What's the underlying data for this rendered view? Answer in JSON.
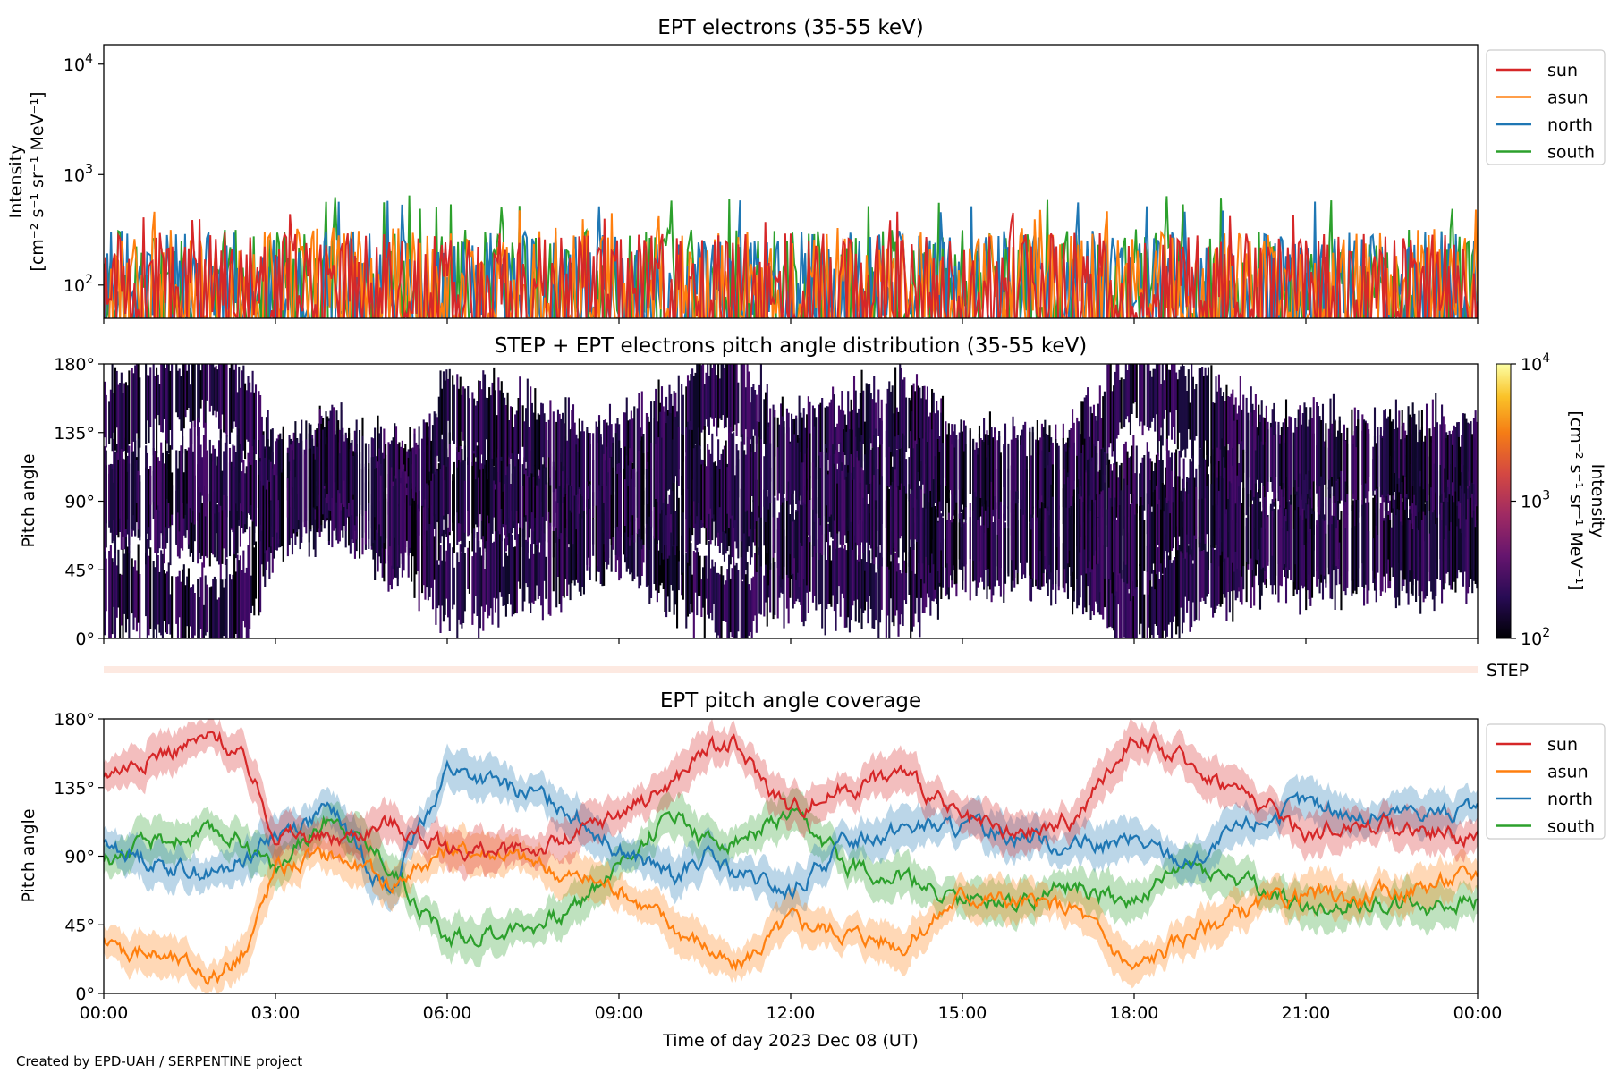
{
  "figure": {
    "credit": "Created by EPD-UAH / SERPENTINE project",
    "xlabel": "Time of day 2023 Dec 08 (UT)",
    "xticks": [
      "00:00",
      "03:00",
      "06:00",
      "09:00",
      "12:00",
      "15:00",
      "18:00",
      "21:00",
      "00:00"
    ],
    "xrange_hours": [
      0,
      24
    ]
  },
  "colors": {
    "sun": "#d62728",
    "asun": "#ff7f0e",
    "north": "#1f77b4",
    "south": "#2ca02c",
    "step_band": "#fde9e1"
  },
  "chart_data": [
    {
      "id": "intensity",
      "type": "line",
      "title": "EPT electrons (35-55 keV)",
      "ylabel_line1": "Intensity",
      "ylabel_line2": "[cm⁻² s⁻¹ sr⁻¹ MeV⁻¹]",
      "yscale": "log",
      "ylim": [
        50,
        15000
      ],
      "yticks": [
        {
          "value": 100,
          "base": "10",
          "exp": "2"
        },
        {
          "value": 1000,
          "base": "10",
          "exp": "3"
        },
        {
          "value": 10000,
          "base": "10",
          "exp": "4"
        }
      ],
      "legend": {
        "position": "outside-right",
        "entries": [
          "sun",
          "asun",
          "north",
          "south"
        ]
      },
      "series": [
        {
          "name": "sun",
          "typical_range": [
            50,
            300
          ],
          "peak": 480
        },
        {
          "name": "asun",
          "typical_range": [
            50,
            330
          ],
          "peak": 500
        },
        {
          "name": "north",
          "typical_range": [
            50,
            310
          ],
          "peak": 600
        },
        {
          "name": "south",
          "typical_range": [
            50,
            320
          ],
          "peak": 650
        }
      ]
    },
    {
      "id": "pad",
      "type": "heatmap",
      "title": "STEP + EPT electrons pitch angle distribution (35-55 keV)",
      "ylabel": "Pitch angle",
      "ylim": [
        0,
        180
      ],
      "yticks": [
        "0°",
        "45°",
        "90°",
        "135°",
        "180°"
      ],
      "colorbar": {
        "label_line1": "Intensity",
        "label_line2": "[cm⁻² s⁻¹ sr⁻¹ MeV⁻¹]",
        "scale": "log",
        "range": [
          100,
          10000
        ],
        "ticks": [
          {
            "value": 100,
            "base": "10",
            "exp": "2"
          },
          {
            "value": 1000,
            "base": "10",
            "exp": "3"
          },
          {
            "value": 10000,
            "base": "10",
            "exp": "4"
          }
        ],
        "colormap": "inferno"
      }
    },
    {
      "id": "step",
      "type": "heatmap",
      "label": "STEP"
    },
    {
      "id": "coverage",
      "type": "line",
      "title": "EPT pitch angle coverage",
      "ylabel": "Pitch angle",
      "ylim": [
        0,
        180
      ],
      "yticks": [
        "0°",
        "45°",
        "90°",
        "135°",
        "180°"
      ],
      "legend": {
        "position": "outside-right",
        "entries": [
          "sun",
          "asun",
          "north",
          "south"
        ]
      },
      "series": [
        {
          "name": "sun",
          "x": [
            0,
            1,
            2,
            2.5,
            3,
            4,
            5,
            6,
            7,
            8,
            9,
            10,
            10.5,
            11,
            12,
            13,
            14,
            15,
            16,
            17,
            18,
            19,
            20,
            21,
            22,
            23,
            24
          ],
          "y": [
            145,
            158,
            168,
            150,
            105,
            100,
            112,
            95,
            92,
            98,
            118,
            140,
            160,
            162,
            120,
            135,
            145,
            112,
            102,
            115,
            170,
            150,
            130,
            105,
            112,
            108,
            100
          ]
        },
        {
          "name": "asun",
          "x": [
            0,
            1,
            2,
            2.5,
            3,
            4,
            5,
            6,
            7,
            8,
            9,
            10,
            10.5,
            11,
            12,
            13,
            14,
            15,
            16,
            17,
            18,
            19,
            20,
            21,
            22,
            23,
            24
          ],
          "y": [
            32,
            25,
            12,
            30,
            82,
            92,
            72,
            95,
            92,
            78,
            70,
            42,
            32,
            15,
            48,
            40,
            32,
            65,
            60,
            55,
            15,
            40,
            55,
            65,
            62,
            70,
            78
          ]
        },
        {
          "name": "north",
          "x": [
            0,
            1,
            2,
            2.5,
            3,
            4,
            5,
            6,
            7,
            8,
            9,
            10,
            10.5,
            11,
            12,
            13,
            14,
            15,
            16,
            17,
            18,
            19,
            20,
            21,
            22,
            23,
            24
          ],
          "y": [
            98,
            85,
            78,
            90,
            105,
            120,
            65,
            148,
            135,
            125,
            95,
            75,
            90,
            78,
            65,
            100,
            110,
            108,
            105,
            95,
            100,
            85,
            110,
            125,
            115,
            120,
            118
          ]
        },
        {
          "name": "south",
          "x": [
            0,
            1,
            2,
            2.5,
            3,
            4,
            5,
            6,
            7,
            8,
            9,
            10,
            10.5,
            11,
            12,
            13,
            14,
            15,
            16,
            17,
            18,
            19,
            20,
            21,
            22,
            23,
            24
          ],
          "y": [
            88,
            100,
            105,
            100,
            80,
            118,
            85,
            35,
            42,
            50,
            85,
            120,
            100,
            100,
            115,
            85,
            75,
            60,
            62,
            70,
            60,
            85,
            72,
            55,
            60,
            58,
            60
          ]
        }
      ]
    }
  ]
}
